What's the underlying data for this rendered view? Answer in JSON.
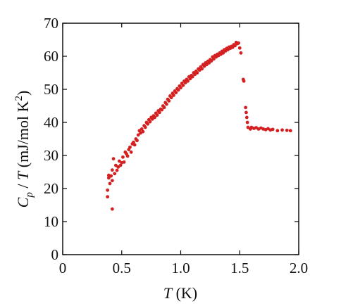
{
  "chart_data": {
    "type": "scatter",
    "xlim": [
      0,
      2.0
    ],
    "ylim": [
      0,
      70
    ],
    "x_ticks": [
      {
        "value": 0,
        "label": "0"
      },
      {
        "value": 0.5,
        "label": "0.5"
      },
      {
        "value": 1.0,
        "label": "1.0"
      },
      {
        "value": 1.5,
        "label": "1.5"
      },
      {
        "value": 2.0,
        "label": "2.0"
      }
    ],
    "y_ticks": [
      {
        "value": 0,
        "label": "0"
      },
      {
        "value": 10,
        "label": "10"
      },
      {
        "value": 20,
        "label": "20"
      },
      {
        "value": 30,
        "label": "30"
      },
      {
        "value": 40,
        "label": "40"
      },
      {
        "value": 50,
        "label": "50"
      },
      {
        "value": 60,
        "label": "60"
      },
      {
        "value": 70,
        "label": "70"
      }
    ],
    "xlabel": {
      "symbol": "T",
      "unit": " (K)"
    },
    "ylabel": {
      "symbol_main": "C",
      "symbol_sub": "p",
      "sep": " / ",
      "symbol2": "T",
      "unit": " (mJ/mol K",
      "unit_sup": "2",
      "unit_end": ")"
    },
    "grid": false,
    "marker_color": "#d42020",
    "points": [
      [
        0.38,
        17.5
      ],
      [
        0.38,
        19.5
      ],
      [
        0.39,
        23.2
      ],
      [
        0.39,
        24.0
      ],
      [
        0.4,
        21.5
      ],
      [
        0.41,
        23.8
      ],
      [
        0.42,
        25.6
      ],
      [
        0.42,
        13.8
      ],
      [
        0.42,
        22.4
      ],
      [
        0.43,
        29.0
      ],
      [
        0.44,
        24.5
      ],
      [
        0.45,
        27.0
      ],
      [
        0.46,
        25.5
      ],
      [
        0.47,
        26.5
      ],
      [
        0.48,
        28.3
      ],
      [
        0.49,
        27.0
      ],
      [
        0.5,
        27.8
      ],
      [
        0.51,
        29.5
      ],
      [
        0.52,
        28.0
      ],
      [
        0.53,
        31.0
      ],
      [
        0.54,
        30.5
      ],
      [
        0.55,
        29.8
      ],
      [
        0.56,
        31.8
      ],
      [
        0.57,
        32.5
      ],
      [
        0.58,
        31.0
      ],
      [
        0.59,
        33.5
      ],
      [
        0.6,
        34.0
      ],
      [
        0.61,
        33.2
      ],
      [
        0.62,
        35.0
      ],
      [
        0.63,
        34.5
      ],
      [
        0.64,
        36.2
      ],
      [
        0.65,
        37.5
      ],
      [
        0.66,
        36.8
      ],
      [
        0.67,
        38.0
      ],
      [
        0.68,
        37.2
      ],
      [
        0.69,
        39.0
      ],
      [
        0.7,
        38.5
      ],
      [
        0.71,
        40.0
      ],
      [
        0.72,
        39.5
      ],
      [
        0.73,
        40.8
      ],
      [
        0.74,
        40.2
      ],
      [
        0.75,
        41.5
      ],
      [
        0.76,
        41.0
      ],
      [
        0.77,
        42.0
      ],
      [
        0.78,
        41.5
      ],
      [
        0.79,
        42.8
      ],
      [
        0.8,
        42.2
      ],
      [
        0.81,
        43.5
      ],
      [
        0.82,
        43.0
      ],
      [
        0.83,
        44.0
      ],
      [
        0.84,
        43.8
      ],
      [
        0.85,
        45.0
      ],
      [
        0.86,
        44.5
      ],
      [
        0.87,
        46.0
      ],
      [
        0.88,
        45.5
      ],
      [
        0.89,
        47.0
      ],
      [
        0.9,
        46.5
      ],
      [
        0.91,
        48.0
      ],
      [
        0.92,
        47.5
      ],
      [
        0.93,
        48.8
      ],
      [
        0.94,
        48.2
      ],
      [
        0.95,
        49.5
      ],
      [
        0.96,
        49.0
      ],
      [
        0.97,
        50.2
      ],
      [
        0.98,
        49.8
      ],
      [
        0.99,
        51.0
      ],
      [
        1.0,
        50.5
      ],
      [
        1.01,
        51.8
      ],
      [
        1.02,
        51.2
      ],
      [
        1.03,
        52.5
      ],
      [
        1.04,
        52.0
      ],
      [
        1.05,
        53.0
      ],
      [
        1.06,
        52.5
      ],
      [
        1.07,
        53.8
      ],
      [
        1.08,
        53.2
      ],
      [
        1.09,
        54.2
      ],
      [
        1.1,
        53.8
      ],
      [
        1.11,
        55.0
      ],
      [
        1.12,
        54.5
      ],
      [
        1.13,
        55.5
      ],
      [
        1.14,
        55.0
      ],
      [
        1.15,
        56.2
      ],
      [
        1.16,
        55.8
      ],
      [
        1.17,
        56.8
      ],
      [
        1.18,
        56.2
      ],
      [
        1.19,
        57.5
      ],
      [
        1.2,
        57.0
      ],
      [
        1.21,
        58.0
      ],
      [
        1.22,
        57.5
      ],
      [
        1.23,
        58.5
      ],
      [
        1.24,
        58.0
      ],
      [
        1.25,
        59.0
      ],
      [
        1.26,
        58.6
      ],
      [
        1.27,
        59.8
      ],
      [
        1.28,
        59.2
      ],
      [
        1.29,
        60.2
      ],
      [
        1.3,
        59.8
      ],
      [
        1.31,
        60.6
      ],
      [
        1.32,
        60.2
      ],
      [
        1.33,
        61.0
      ],
      [
        1.34,
        60.6
      ],
      [
        1.35,
        61.5
      ],
      [
        1.36,
        61.0
      ],
      [
        1.37,
        62.0
      ],
      [
        1.38,
        61.6
      ],
      [
        1.39,
        62.4
      ],
      [
        1.4,
        62.0
      ],
      [
        1.41,
        62.8
      ],
      [
        1.42,
        62.4
      ],
      [
        1.43,
        63.0
      ],
      [
        1.44,
        62.7
      ],
      [
        1.45,
        63.5
      ],
      [
        1.46,
        63.2
      ],
      [
        1.47,
        64.2
      ],
      [
        1.48,
        63.8
      ],
      [
        1.49,
        64.0
      ],
      [
        1.5,
        62.5
      ],
      [
        1.51,
        61.0
      ],
      [
        1.53,
        53.0
      ],
      [
        1.535,
        52.5
      ],
      [
        1.55,
        44.5
      ],
      [
        1.555,
        43.0
      ],
      [
        1.56,
        41.5
      ],
      [
        1.565,
        40.0
      ],
      [
        1.57,
        38.5
      ],
      [
        1.59,
        38.0
      ],
      [
        1.6,
        38.5
      ],
      [
        1.62,
        38.2
      ],
      [
        1.64,
        38.4
      ],
      [
        1.66,
        38.0
      ],
      [
        1.68,
        38.3
      ],
      [
        1.7,
        38.0
      ],
      [
        1.72,
        37.8
      ],
      [
        1.74,
        38.1
      ],
      [
        1.76,
        37.7
      ],
      [
        1.78,
        37.9
      ],
      [
        1.82,
        37.5
      ],
      [
        1.86,
        37.7
      ],
      [
        1.9,
        37.6
      ],
      [
        1.93,
        37.5
      ]
    ]
  }
}
